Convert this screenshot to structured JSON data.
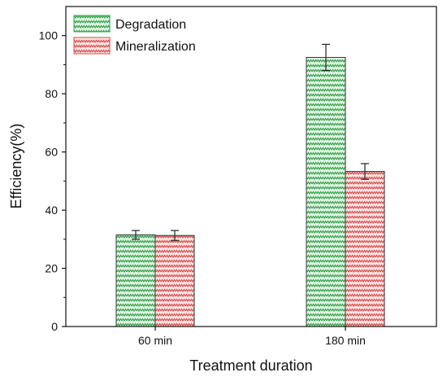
{
  "chart_data": {
    "type": "bar",
    "title": "",
    "xlabel": "Treatment duration",
    "ylabel": "Efficiency(%)",
    "ylim": [
      0,
      110
    ],
    "yticks": [
      0,
      20,
      40,
      60,
      80,
      100
    ],
    "categories": [
      "60 min",
      "180 min"
    ],
    "grid": false,
    "legend_position": "top-left",
    "series": [
      {
        "name": "Degradation",
        "values": [
          31.5,
          92.5
        ],
        "errors": [
          1.5,
          4.5
        ],
        "color": "#2f9e44",
        "fill": "#e3f5e6",
        "pattern": "zigzag"
      },
      {
        "name": "Mineralization",
        "values": [
          31.3,
          53.3
        ],
        "errors": [
          1.7,
          2.7
        ],
        "color": "#d94848",
        "fill": "#fbe6e6",
        "pattern": "zigzag"
      }
    ]
  }
}
